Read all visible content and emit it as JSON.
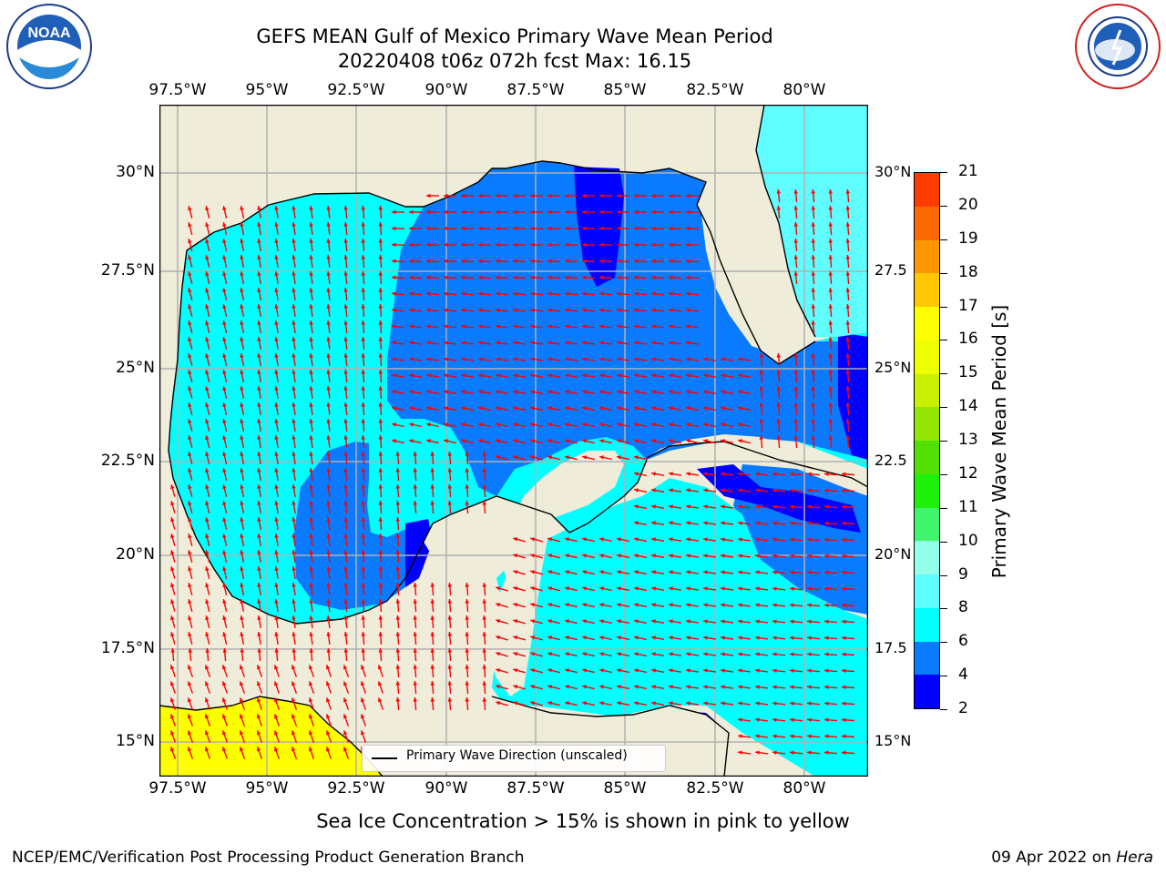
{
  "title": {
    "line1": "GEFS MEAN Gulf of Mexico Primary Wave Mean Period",
    "line2": "20220408 t06z 072h fcst   Max: 16.15"
  },
  "logos": {
    "left": {
      "icon": "noaa-logo",
      "text": "NOAA"
    },
    "right": {
      "icon": "national-weather-service-logo"
    }
  },
  "map": {
    "lon_labels": [
      "97.5°W",
      "95°W",
      "92.5°W",
      "90°W",
      "87.5°W",
      "85°W",
      "82.5°W",
      "80°W"
    ],
    "lat_labels": [
      "30°N",
      "27.5°N",
      "25°N",
      "22.5°N",
      "20°N",
      "17.5°N",
      "15°N"
    ],
    "lat_labels_right": [
      "30°N",
      "27.5",
      "25°N",
      "22.5",
      "20°N",
      "17.5",
      "15°N"
    ],
    "colors": {
      "land": "#efecda",
      "coast": "#000000",
      "grid": "#b0b0b0",
      "arrow": "#ff0000",
      "ice": "#ffff00"
    },
    "legend": "Primary Wave Direction (unscaled)"
  },
  "colorbar": {
    "label": "Primary Wave Mean Period [s]",
    "ticks": [
      "2",
      "4",
      "6",
      "8",
      "9",
      "10",
      "11",
      "12",
      "13",
      "14",
      "15",
      "16",
      "17",
      "18",
      "19",
      "20",
      "21"
    ],
    "colors": [
      "#0000ff",
      "#0a7aff",
      "#00ffff",
      "#5ffdff",
      "#94ffe8",
      "#40f56b",
      "#1cf00b",
      "#52e000",
      "#94e600",
      "#c8f000",
      "#eeff00",
      "#ffff00",
      "#ffc800",
      "#ff9600",
      "#ff6a00",
      "#ff3c00",
      "#ff0000"
    ]
  },
  "subtitle": "Sea Ice Concentration > 15% is shown in pink to yellow",
  "footer": {
    "left": "NCEP/EMC/Verification Post Processing Product Generation Branch",
    "right_prefix": "09 Apr 2022 on ",
    "right_machine": "Hera"
  }
}
